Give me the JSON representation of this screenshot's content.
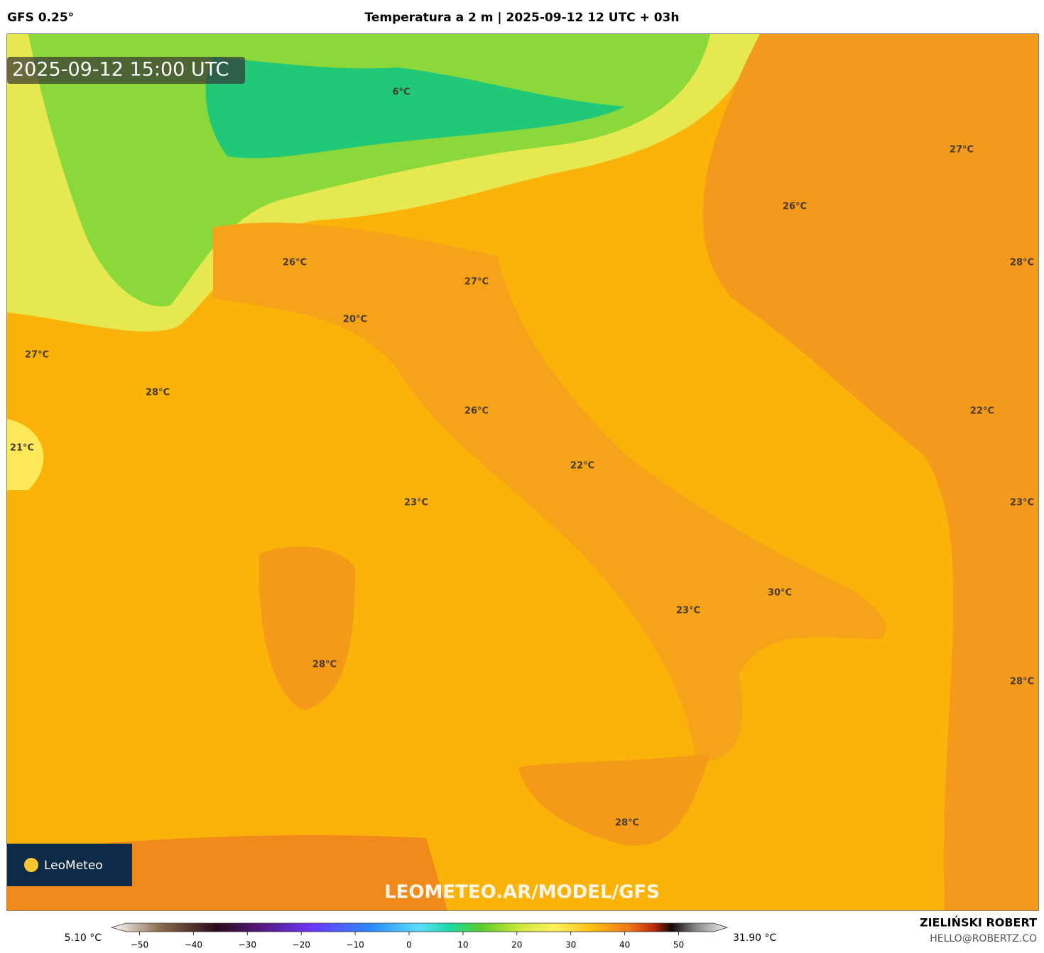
{
  "header": {
    "model": "GFS 0.25°",
    "title": "Temperatura a 2 m | 2025-09-12 12 UTC + 03h"
  },
  "map": {
    "valid_time": "2025-09-12 15:00 UTC",
    "labels": [
      "6°C",
      "27°C",
      "26°C",
      "28°C",
      "26°C",
      "27°C",
      "20°C",
      "27°C",
      "28°C",
      "21°C",
      "26°C",
      "22°C",
      "22°C",
      "23°C",
      "23°C",
      "30°C",
      "23°C",
      "28°C",
      "28°C",
      "28°C"
    ],
    "logo": "LeoMeteo",
    "watermark": "LEOMETEO.AR/MODEL/GFS"
  },
  "colorbar": {
    "min_label": "5.10 °C",
    "max_label": "31.90 °C",
    "ticks": [
      {
        "value": -50,
        "label": "−50"
      },
      {
        "value": -40,
        "label": "−40"
      },
      {
        "value": -30,
        "label": "−30"
      },
      {
        "value": -20,
        "label": "−20"
      },
      {
        "value": -10,
        "label": "−10"
      },
      0,
      10,
      20,
      30,
      40,
      50
    ]
  },
  "footer": {
    "author": "ZIELIŃSKI ROBERT",
    "contact": "HELLO@ROBERTZ.CO"
  }
}
